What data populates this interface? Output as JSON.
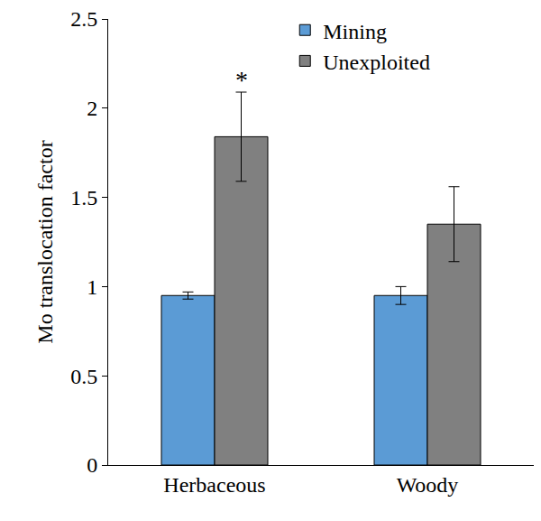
{
  "chart_data": {
    "type": "bar",
    "categories": [
      "Herbaceous",
      "Woody"
    ],
    "series": [
      {
        "name": "Mining",
        "color": "#5b9bd5",
        "values": [
          0.95,
          0.95
        ],
        "errors": [
          0.02,
          0.05
        ]
      },
      {
        "name": "Unexploited",
        "color": "#808080",
        "values": [
          1.84,
          1.35
        ],
        "errors": [
          0.25,
          0.21
        ]
      }
    ],
    "y_label": "Mo translocation factor",
    "ylim": [
      0,
      2.5
    ],
    "yticks": [
      0,
      0.5,
      1,
      1.5,
      2,
      2.5
    ],
    "grid": false,
    "legend": "upper right",
    "annotations": [
      {
        "text": "*",
        "category": "Herbaceous",
        "series": "Unexploited"
      }
    ]
  }
}
